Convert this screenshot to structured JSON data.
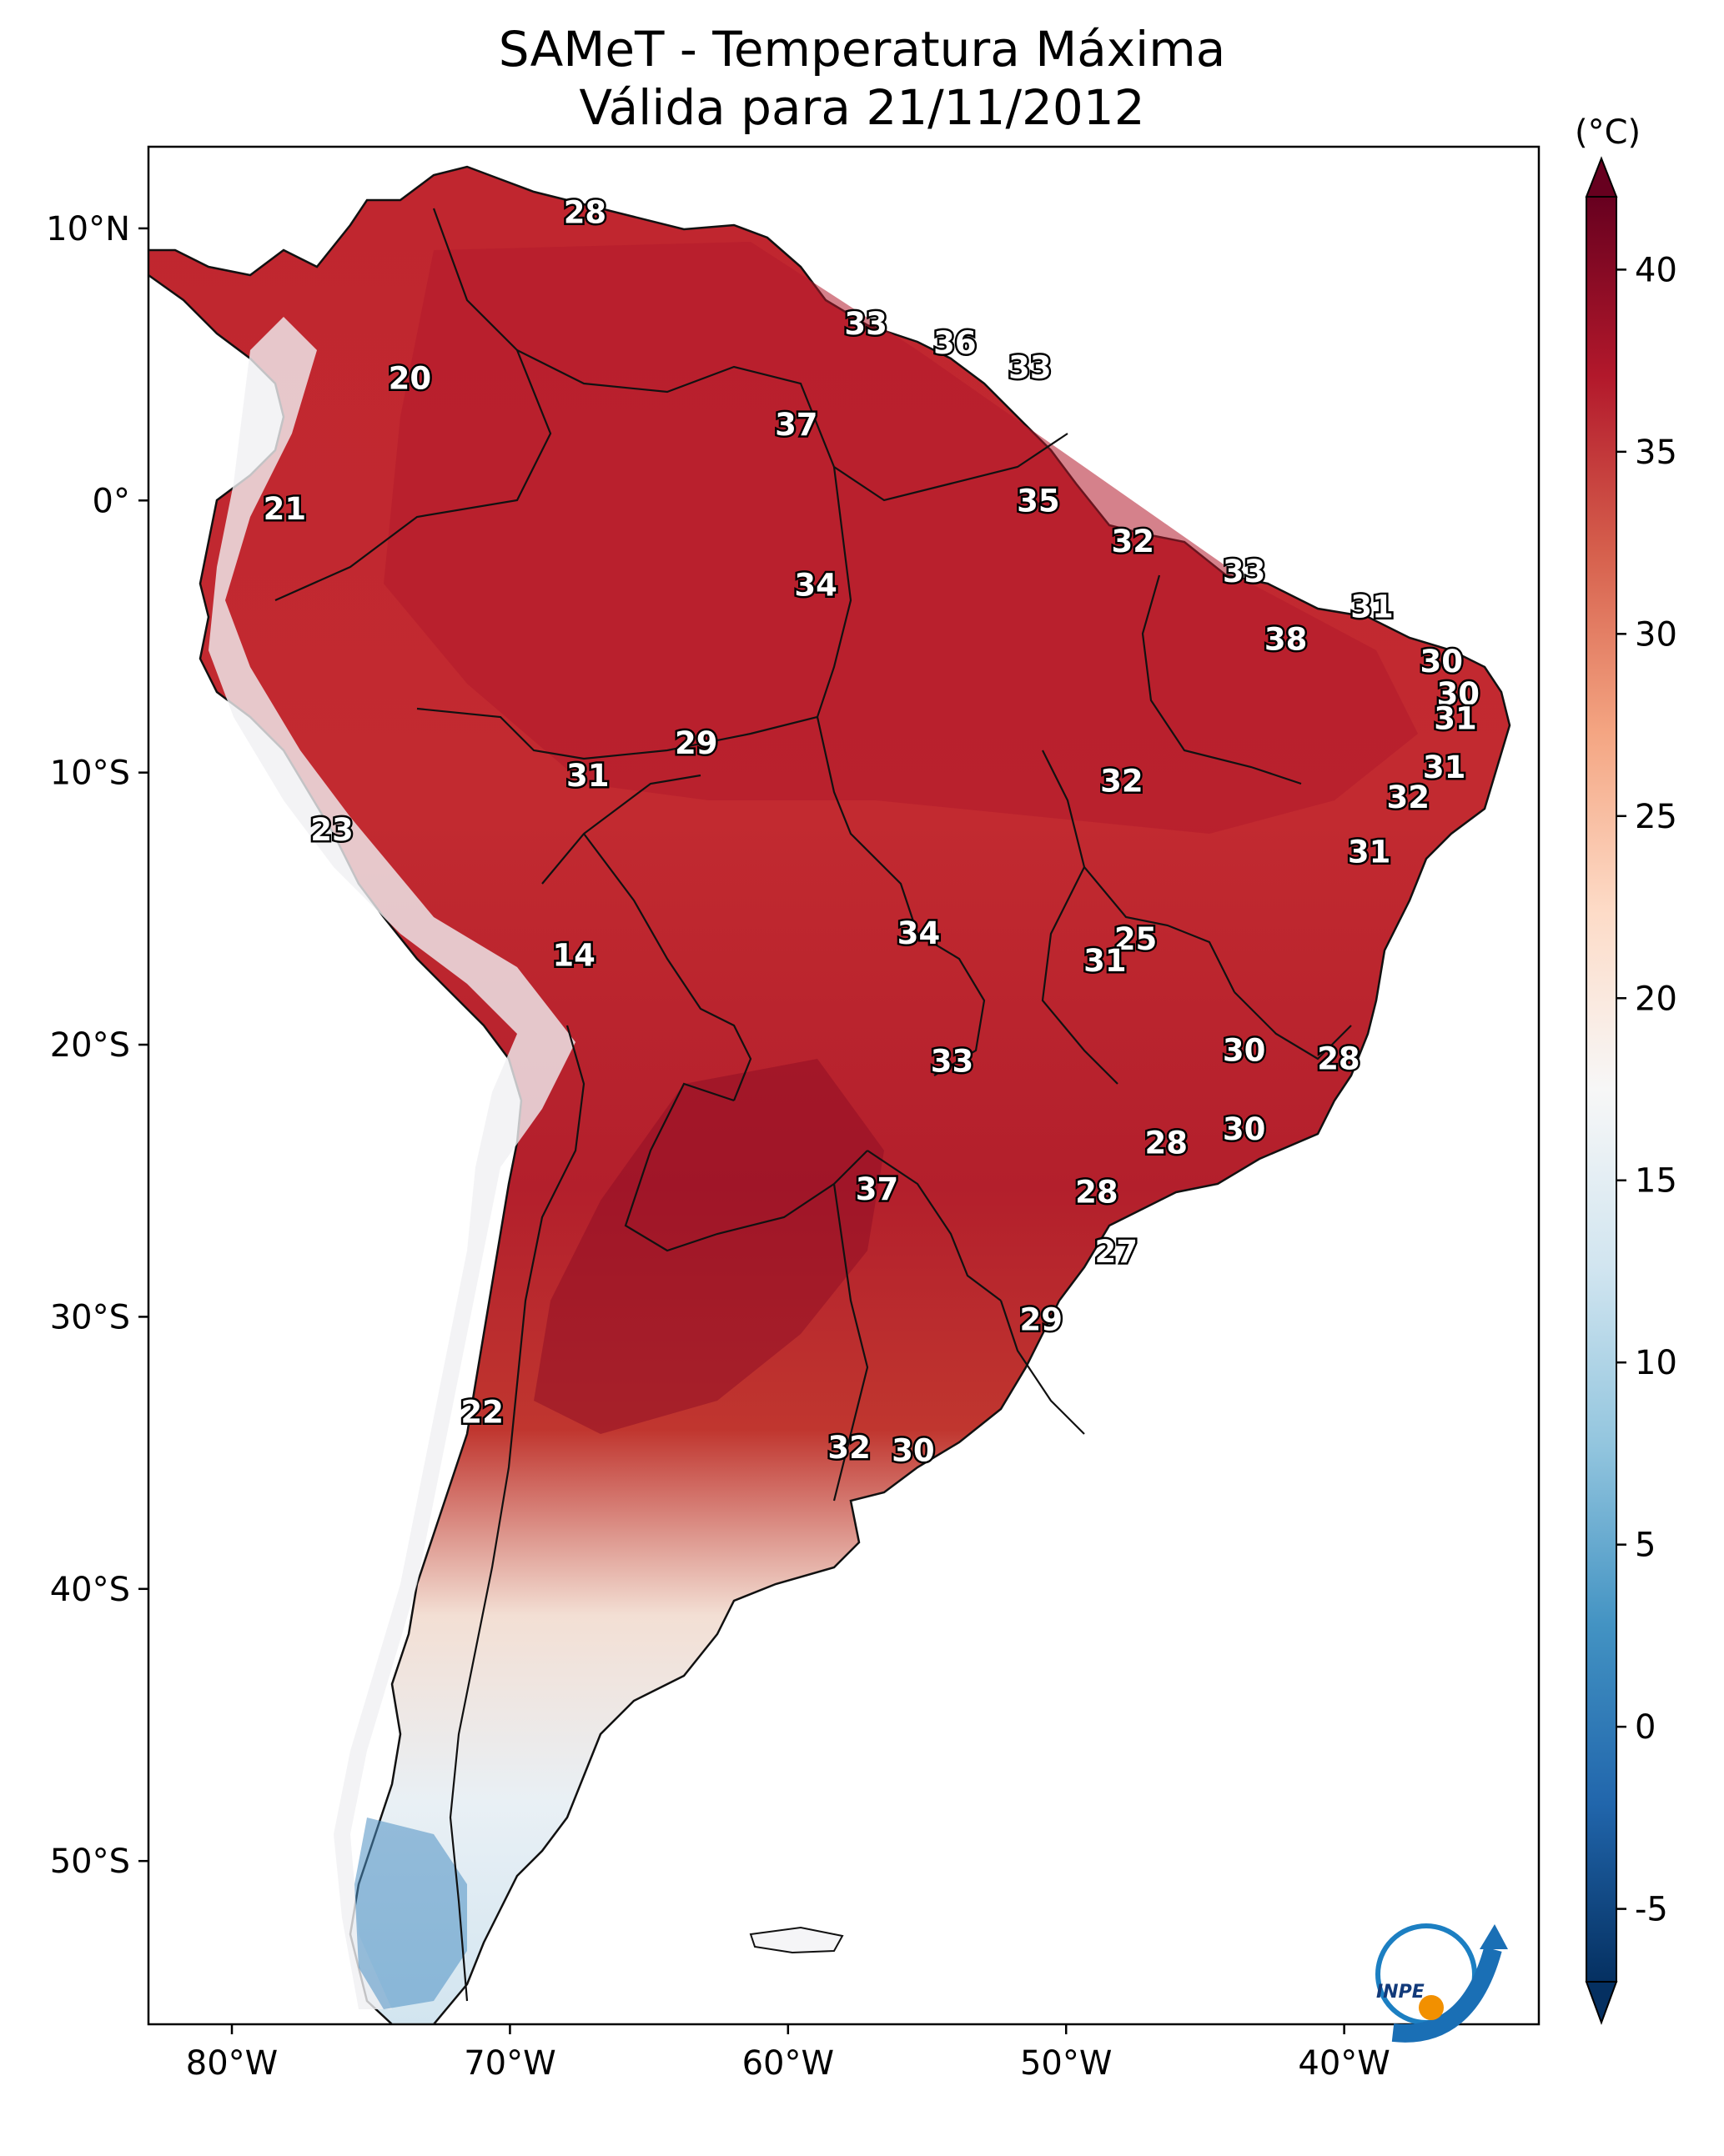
{
  "title": "SAMeT - Temperatura Máxima",
  "subtitle": "Válida para 21/11/2012",
  "map": {
    "extent": {
      "lon": [
        -83,
        -33
      ],
      "lat": [
        -56,
        13
      ]
    },
    "lon_ticks": [
      {
        "value": -80,
        "label": "80°W"
      },
      {
        "value": -70,
        "label": "70°W"
      },
      {
        "value": -60,
        "label": "60°W"
      },
      {
        "value": -50,
        "label": "50°W"
      },
      {
        "value": -40,
        "label": "40°W"
      }
    ],
    "lat_ticks": [
      {
        "value": 10,
        "label": "10°N"
      },
      {
        "value": 0,
        "label": "0°"
      },
      {
        "value": -10,
        "label": "10°S"
      },
      {
        "value": -20,
        "label": "20°S"
      },
      {
        "value": -30,
        "label": "30°S"
      },
      {
        "value": -40,
        "label": "40°S"
      },
      {
        "value": -50,
        "label": "50°S"
      }
    ],
    "labels": [
      {
        "lon": -67.3,
        "lat": 10.6,
        "value": "28"
      },
      {
        "lon": -57.2,
        "lat": 6.5,
        "value": "33"
      },
      {
        "lon": -54.0,
        "lat": 5.8,
        "value": "36"
      },
      {
        "lon": -51.3,
        "lat": 4.9,
        "value": "33"
      },
      {
        "lon": -73.6,
        "lat": 4.5,
        "value": "20"
      },
      {
        "lon": -59.7,
        "lat": 2.8,
        "value": "37"
      },
      {
        "lon": -51.0,
        "lat": 0.0,
        "value": "35"
      },
      {
        "lon": -78.1,
        "lat": -0.3,
        "value": "21"
      },
      {
        "lon": -47.6,
        "lat": -1.5,
        "value": "32"
      },
      {
        "lon": -59.0,
        "lat": -3.1,
        "value": "34"
      },
      {
        "lon": -43.6,
        "lat": -2.6,
        "value": "33"
      },
      {
        "lon": -39.0,
        "lat": -3.9,
        "value": "31"
      },
      {
        "lon": -42.1,
        "lat": -5.1,
        "value": "38"
      },
      {
        "lon": -36.5,
        "lat": -5.9,
        "value": "30"
      },
      {
        "lon": -35.9,
        "lat": -7.1,
        "value": "30"
      },
      {
        "lon": -36.0,
        "lat": -8.0,
        "value": "31"
      },
      {
        "lon": -63.3,
        "lat": -8.9,
        "value": "29"
      },
      {
        "lon": -67.2,
        "lat": -10.1,
        "value": "31"
      },
      {
        "lon": -48.0,
        "lat": -10.3,
        "value": "32"
      },
      {
        "lon": -36.4,
        "lat": -9.8,
        "value": "31"
      },
      {
        "lon": -37.7,
        "lat": -10.9,
        "value": "32"
      },
      {
        "lon": -39.1,
        "lat": -12.9,
        "value": "31"
      },
      {
        "lon": -76.4,
        "lat": -12.1,
        "value": "23"
      },
      {
        "lon": -55.3,
        "lat": -15.9,
        "value": "34"
      },
      {
        "lon": -47.5,
        "lat": -16.1,
        "value": "25"
      },
      {
        "lon": -48.6,
        "lat": -16.9,
        "value": "31"
      },
      {
        "lon": -67.7,
        "lat": -16.7,
        "value": "14"
      },
      {
        "lon": -43.6,
        "lat": -20.2,
        "value": "30"
      },
      {
        "lon": -40.2,
        "lat": -20.5,
        "value": "28"
      },
      {
        "lon": -54.1,
        "lat": -20.6,
        "value": "33"
      },
      {
        "lon": -43.6,
        "lat": -23.1,
        "value": "30"
      },
      {
        "lon": -46.4,
        "lat": -23.6,
        "value": "28"
      },
      {
        "lon": -56.8,
        "lat": -25.3,
        "value": "37"
      },
      {
        "lon": -48.9,
        "lat": -25.4,
        "value": "28"
      },
      {
        "lon": -48.2,
        "lat": -27.6,
        "value": "27"
      },
      {
        "lon": -50.9,
        "lat": -30.1,
        "value": "29"
      },
      {
        "lon": -71.0,
        "lat": -33.5,
        "value": "22"
      },
      {
        "lon": -57.8,
        "lat": -34.8,
        "value": "32"
      },
      {
        "lon": -55.5,
        "lat": -34.9,
        "value": "30"
      }
    ]
  },
  "colorbar": {
    "unit": "(°C)",
    "min": -7,
    "max": 42,
    "ticks": [
      {
        "value": 40,
        "label": "40"
      },
      {
        "value": 35,
        "label": "35"
      },
      {
        "value": 30,
        "label": "30"
      },
      {
        "value": 25,
        "label": "25"
      },
      {
        "value": 20,
        "label": "20"
      },
      {
        "value": 15,
        "label": "15"
      },
      {
        "value": 10,
        "label": "10"
      },
      {
        "value": 5,
        "label": "5"
      },
      {
        "value": 0,
        "label": "0"
      },
      {
        "value": -5,
        "label": "-5"
      }
    ],
    "colors": [
      "#053061",
      "#2166ac",
      "#4393c3",
      "#92c5de",
      "#d1e5f0",
      "#f7f7f7",
      "#fddbc7",
      "#f4a582",
      "#d6604d",
      "#b2182b",
      "#67001f"
    ]
  },
  "logo": {
    "text": "INPE"
  }
}
